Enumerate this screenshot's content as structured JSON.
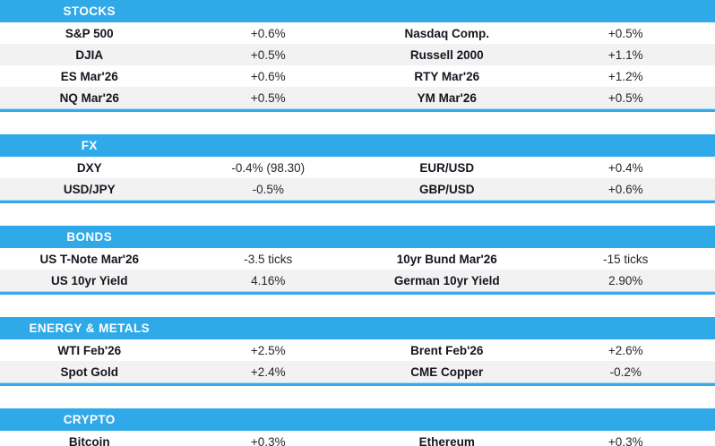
{
  "colors": {
    "header_bg": "#2fa9e8",
    "header_text": "#ffffff",
    "row_bg": "#ffffff",
    "row_alt_bg": "#f2f2f2",
    "divider": "#35aae8",
    "divider_light": "#a9dcf5",
    "label_text": "#15151f",
    "value_text": "#26262f"
  },
  "sections": [
    {
      "title": "STOCKS",
      "rows": [
        {
          "left_label": "S&P 500",
          "left_value": "+0.6%",
          "right_label": "Nasdaq Comp.",
          "right_value": "+0.5%"
        },
        {
          "left_label": "DJIA",
          "left_value": "+0.5%",
          "right_label": "Russell 2000",
          "right_value": "+1.1%"
        },
        {
          "left_label": "ES Mar'26",
          "left_value": "+0.6%",
          "right_label": "RTY Mar'26",
          "right_value": "+1.2%"
        },
        {
          "left_label": "NQ Mar'26",
          "left_value": "+0.5%",
          "right_label": "YM Mar'26",
          "right_value": "+0.5%"
        }
      ]
    },
    {
      "title": "FX",
      "rows": [
        {
          "left_label": "DXY",
          "left_value": "-0.4% (98.30)",
          "right_label": "EUR/USD",
          "right_value": "+0.4%"
        },
        {
          "left_label": "USD/JPY",
          "left_value": "-0.5%",
          "right_label": "GBP/USD",
          "right_value": "+0.6%"
        }
      ]
    },
    {
      "title": "BONDS",
      "rows": [
        {
          "left_label": "US T-Note Mar'26",
          "left_value": "-3.5 ticks",
          "right_label": "10yr Bund Mar'26",
          "right_value": "-15 ticks"
        },
        {
          "left_label": "US 10yr Yield",
          "left_value": "4.16%",
          "right_label": "German 10yr Yield",
          "right_value": "2.90%"
        }
      ]
    },
    {
      "title": "ENERGY & METALS",
      "rows": [
        {
          "left_label": "WTI Feb'26",
          "left_value": "+2.5%",
          "right_label": "Brent Feb'26",
          "right_value": "+2.6%"
        },
        {
          "left_label": "Spot Gold",
          "left_value": "+2.4%",
          "right_label": "CME Copper",
          "right_value": "-0.2%"
        }
      ]
    },
    {
      "title": "CRYPTO",
      "truncated": true,
      "rows": [
        {
          "left_label": "Bitcoin",
          "left_value": "+0.3%",
          "right_label": "Ethereum",
          "right_value": "+0.3%"
        }
      ]
    }
  ]
}
